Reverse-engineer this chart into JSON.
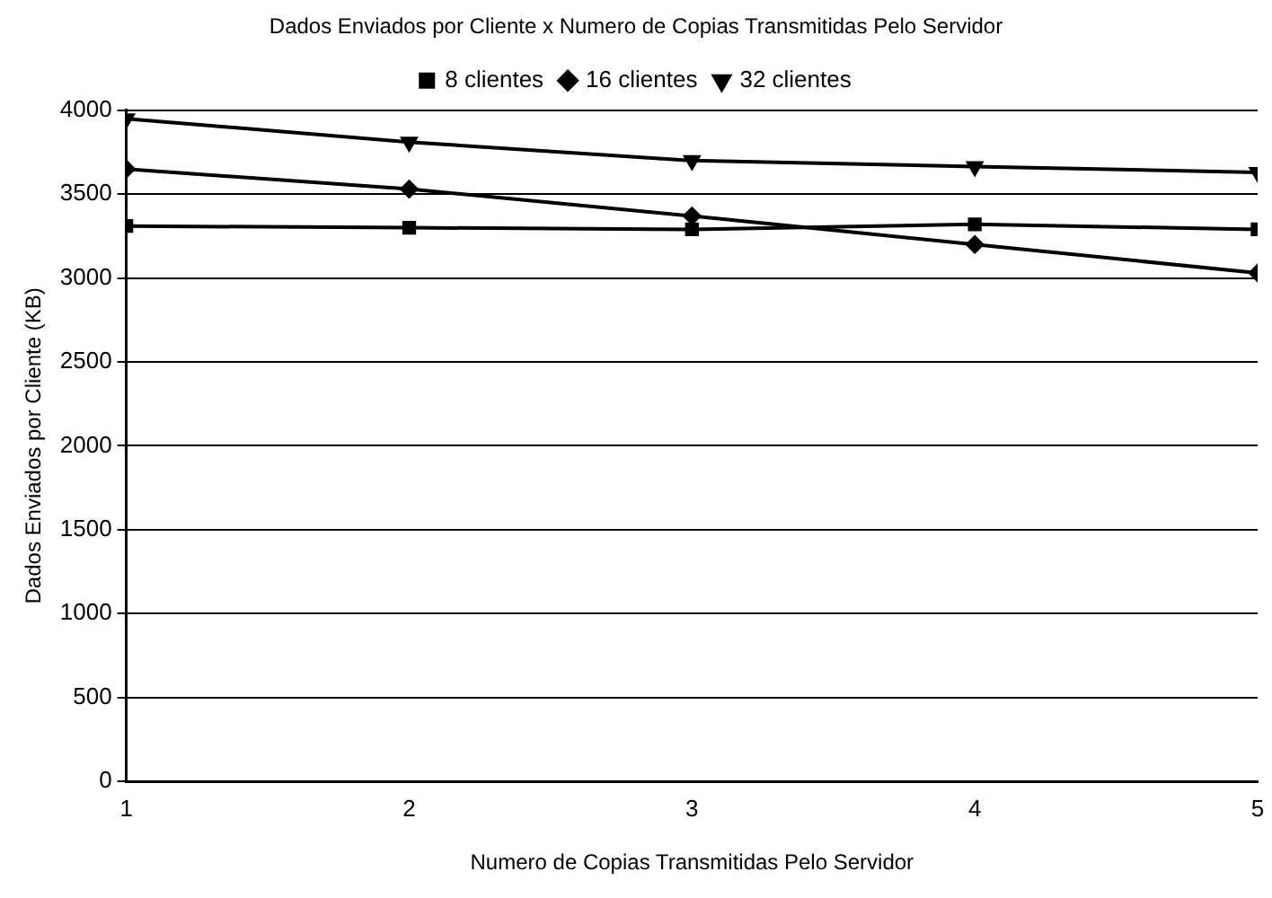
{
  "chart_data": {
    "type": "line",
    "title": "Dados Enviados por Cliente x Numero de Copias Transmitidas Pelo Servidor",
    "xlabel": "Numero de Copias Transmitidas Pelo Servidor",
    "ylabel": "Dados Enviados por Cliente (KB)",
    "x": [
      1,
      2,
      3,
      4,
      5
    ],
    "xlim": [
      1,
      5
    ],
    "xticks": [
      1,
      2,
      3,
      4,
      5
    ],
    "ylim": [
      0,
      4000
    ],
    "yticks": [
      0,
      500,
      1000,
      1500,
      2000,
      2500,
      3000,
      3500,
      4000
    ],
    "grid": "y",
    "legend": "top",
    "series": [
      {
        "name": "8 clientes",
        "color": "#000000",
        "marker": "square",
        "values": [
          3310,
          3300,
          3290,
          3320,
          3290
        ]
      },
      {
        "name": "16 clientes",
        "color": "#000000",
        "marker": "diamond",
        "values": [
          3650,
          3530,
          3370,
          3200,
          3030
        ]
      },
      {
        "name": "32 clientes",
        "color": "#000000",
        "marker": "triangle",
        "values": [
          3950,
          3810,
          3700,
          3665,
          3630
        ]
      }
    ]
  }
}
